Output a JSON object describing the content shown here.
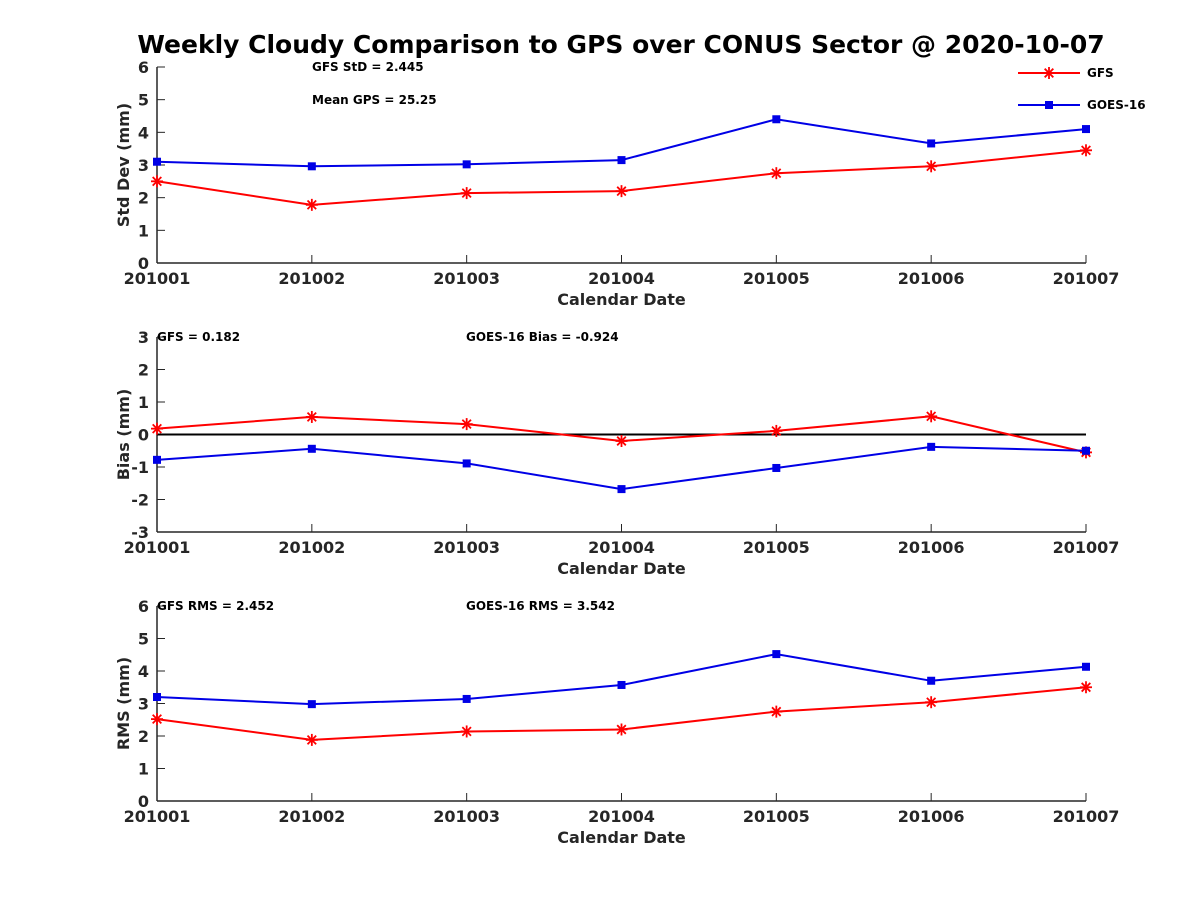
{
  "title": "Weekly Cloudy Comparison to GPS over CONUS Sector @ 2020-10-07",
  "colors": {
    "GFS": "#ff0000",
    "GOES-16": "#0000e6",
    "axis": "#262626",
    "zero_line": "#000000"
  },
  "legend": {
    "placement": "top-right",
    "entries": [
      "GFS",
      "GOES-16"
    ]
  },
  "chart_data": [
    {
      "type": "line",
      "xlabel": "Calendar Date",
      "ylabel": "Std Dev (mm)",
      "categories": [
        "201001",
        "201002",
        "201003",
        "201004",
        "201005",
        "201006",
        "201007"
      ],
      "ylim": [
        0,
        6
      ],
      "yticks": [
        "0",
        "1",
        "2",
        "3",
        "4",
        "5",
        "6"
      ],
      "grid": false,
      "annotations": [
        "GFS StD = 2.445",
        "Mean GPS = 25.25"
      ],
      "series": [
        {
          "name": "GFS",
          "marker": "asterisk",
          "values": [
            2.5,
            1.78,
            2.14,
            2.2,
            2.75,
            2.96,
            3.45
          ]
        },
        {
          "name": "GOES-16",
          "marker": "square",
          "values": [
            3.1,
            2.96,
            3.02,
            3.15,
            4.4,
            3.66,
            4.1
          ]
        }
      ]
    },
    {
      "type": "line",
      "xlabel": "Calendar Date",
      "ylabel": "Bias (mm)",
      "categories": [
        "201001",
        "201002",
        "201003",
        "201004",
        "201005",
        "201006",
        "201007"
      ],
      "ylim": [
        -3,
        3
      ],
      "yticks": [
        "-3",
        "-2",
        "-1",
        "0",
        "1",
        "2",
        "3"
      ],
      "grid": false,
      "zero_line": true,
      "annotations": [
        "GFS = 0.182",
        "GOES-16 Bias  = -0.924"
      ],
      "series": [
        {
          "name": "GFS",
          "marker": "asterisk",
          "values": [
            0.18,
            0.54,
            0.32,
            -0.2,
            0.11,
            0.56,
            -0.55
          ]
        },
        {
          "name": "GOES-16",
          "marker": "square",
          "values": [
            -0.78,
            -0.44,
            -0.89,
            -1.68,
            -1.03,
            -0.38,
            -0.5
          ]
        }
      ]
    },
    {
      "type": "line",
      "xlabel": "Calendar Date",
      "ylabel": "RMS (mm)",
      "categories": [
        "201001",
        "201002",
        "201003",
        "201004",
        "201005",
        "201006",
        "201007"
      ],
      "ylim": [
        0,
        6
      ],
      "yticks": [
        "0",
        "1",
        "2",
        "3",
        "4",
        "5",
        "6"
      ],
      "grid": false,
      "annotations": [
        "GFS RMS = 2.452",
        "GOES-16 RMS = 3.542"
      ],
      "series": [
        {
          "name": "GFS",
          "marker": "asterisk",
          "values": [
            2.52,
            1.88,
            2.14,
            2.2,
            2.75,
            3.04,
            3.5
          ]
        },
        {
          "name": "GOES-16",
          "marker": "square",
          "values": [
            3.2,
            2.98,
            3.14,
            3.57,
            4.52,
            3.7,
            4.13
          ]
        }
      ]
    }
  ]
}
